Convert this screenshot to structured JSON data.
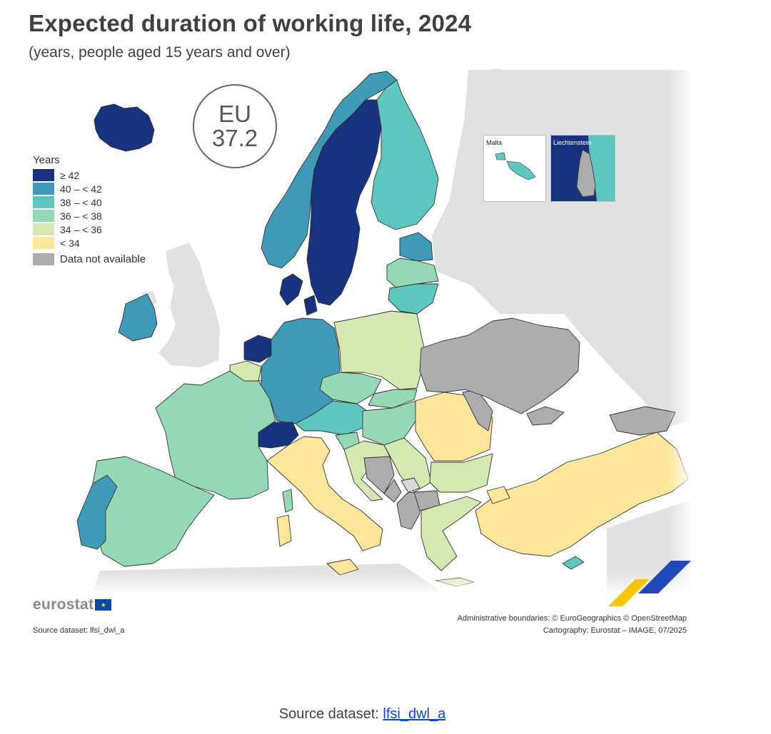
{
  "header": {
    "title": "Expected duration of working life, 2024",
    "subtitle": "(years, people aged 15 years and over)"
  },
  "badge": {
    "line1": "EU",
    "line2": "37.2"
  },
  "legend": {
    "title": "Years",
    "classes": [
      {
        "label": "≥ 42",
        "color": "#17327f"
      },
      {
        "label": "40 – < 42",
        "color": "#3f9ab8"
      },
      {
        "label": "38 – < 40",
        "color": "#5cc6bf"
      },
      {
        "label": "36 – < 38",
        "color": "#95d8b5"
      },
      {
        "label": "34 – < 36",
        "color": "#d4e9b1"
      },
      {
        "label": "< 34",
        "color": "#ffe69a"
      }
    ],
    "na": {
      "label": "Data not available",
      "color": "#acacac"
    }
  },
  "insets": {
    "malta": "Malta",
    "liechtenstein": "Liechtenstein"
  },
  "branding": {
    "logo": "eurostat"
  },
  "credits": {
    "source_left": "Source dataset: lfsi_dwl_a",
    "boundaries": "Administrative boundaries: © EuroGeographics © OpenStreetMap",
    "cartography": "Cartography: Eurostat – IMAGE, 07/2025"
  },
  "footer": {
    "prefix": "Source dataset: ",
    "link": "lfsi_dwl_a"
  },
  "colors": {
    "sea": "#ffffff",
    "outside": "#e1e1e1",
    "border": "#333333"
  },
  "chart_data": {
    "type": "choropleth",
    "eu_value": 37.2,
    "categories_by_class": {
      ">= 42": [
        "Iceland",
        "Sweden",
        "Denmark",
        "Netherlands",
        "Switzerland"
      ],
      "40 - < 42": [
        "Norway",
        "Ireland",
        "Germany",
        "Estonia",
        "Portugal"
      ],
      "38 - < 40": [
        "Finland",
        "Austria",
        "Lithuania",
        "Malta",
        "Liechtenstein",
        "Cyprus"
      ],
      "36 - < 38": [
        "France",
        "Spain",
        "Latvia",
        "Czechia",
        "Slovakia",
        "Hungary",
        "Slovenia"
      ],
      "34 - < 36": [
        "Poland",
        "Belgium",
        "Luxembourg",
        "Croatia",
        "Bulgaria",
        "Greece",
        "Serbia"
      ],
      "< 34": [
        "Italy",
        "Romania",
        "Turkey"
      ],
      "Data not available": [
        "Ukraine",
        "Moldova",
        "Bosnia and Herzegovina",
        "Montenegro",
        "Albania",
        "Kosovo",
        "Georgia"
      ]
    }
  }
}
